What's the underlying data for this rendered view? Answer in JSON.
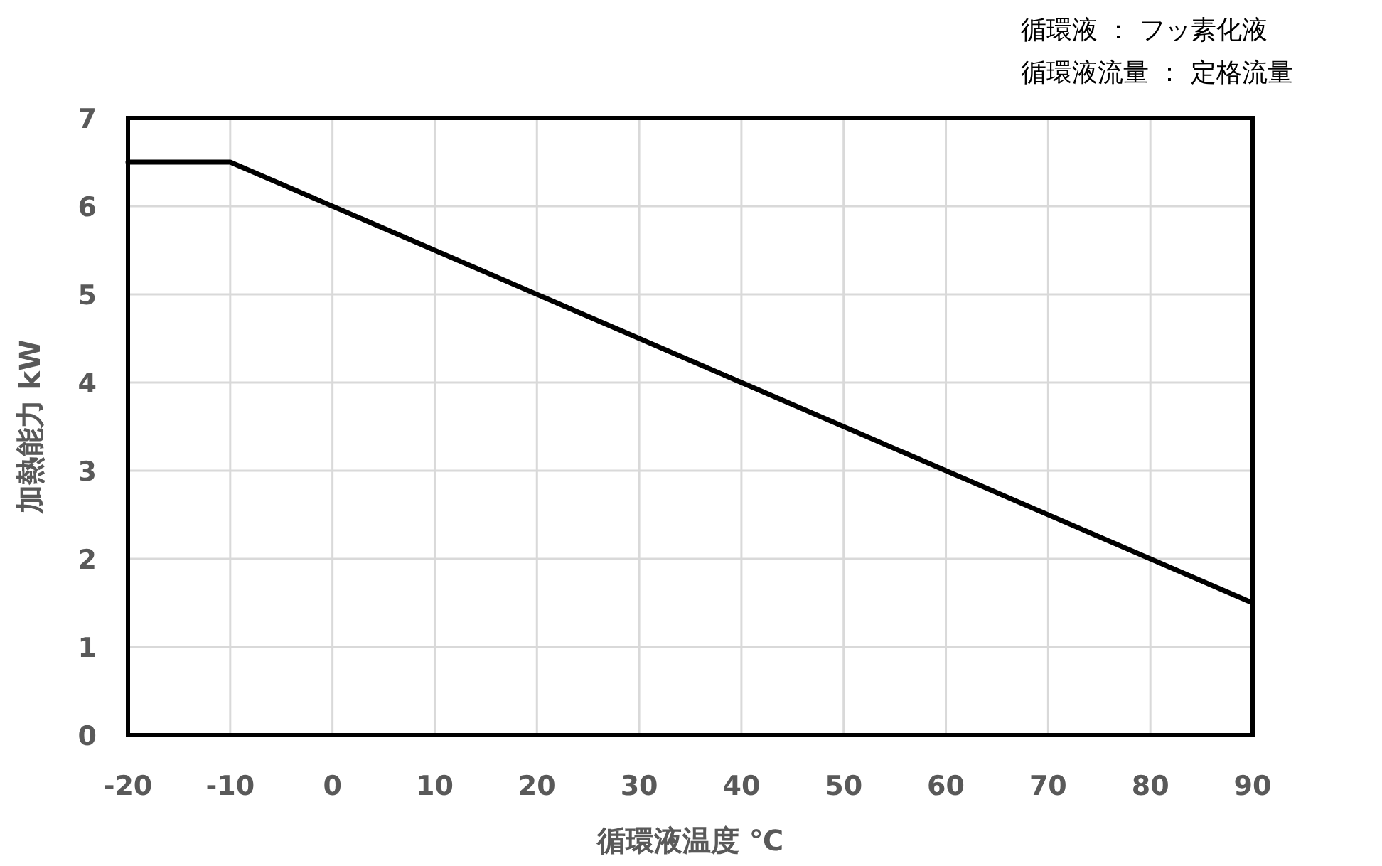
{
  "chart_data": {
    "type": "line",
    "xlabel": "循環液温度 ℃",
    "ylabel": "加熱能力 kW",
    "annotations": [
      "循環液 ： フッ素化液",
      "循環液流量 ： 定格流量"
    ],
    "x": [
      -20,
      -10,
      90
    ],
    "series": [
      {
        "color": "#000000",
        "values": [
          6.5,
          6.5,
          1.5
        ]
      }
    ],
    "xlim": [
      -20,
      90
    ],
    "ylim": [
      0,
      7
    ],
    "xticks": [
      -20,
      -10,
      0,
      10,
      20,
      30,
      40,
      50,
      60,
      70,
      80,
      90
    ],
    "yticks": [
      0,
      1,
      2,
      3,
      4,
      5,
      6,
      7
    ],
    "grid": true
  }
}
